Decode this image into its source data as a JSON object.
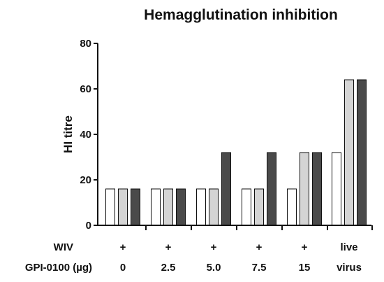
{
  "chart_data": {
    "type": "bar",
    "title": "Hemagglutination inhibition",
    "ylabel": "HI titre",
    "ylim": [
      0,
      80
    ],
    "yticks": [
      0,
      20,
      40,
      60,
      80
    ],
    "row_labels": [
      "WIV",
      "GPI-0100 (µg)"
    ],
    "groups": [
      {
        "wiv": "+",
        "gpi": "0",
        "values": [
          16,
          16,
          16
        ]
      },
      {
        "wiv": "+",
        "gpi": "2.5",
        "values": [
          16,
          16,
          16
        ]
      },
      {
        "wiv": "+",
        "gpi": "5.0",
        "values": [
          16,
          16,
          32
        ]
      },
      {
        "wiv": "+",
        "gpi": "7.5",
        "values": [
          16,
          16,
          32
        ]
      },
      {
        "wiv": "+",
        "gpi": "15",
        "values": [
          16,
          32,
          32
        ]
      },
      {
        "wiv": "live",
        "gpi": "virus",
        "values": [
          32,
          64,
          64
        ]
      }
    ],
    "series_colors": [
      "#ffffff",
      "#d4d4d4",
      "#4a4a4a"
    ],
    "grid": false
  }
}
